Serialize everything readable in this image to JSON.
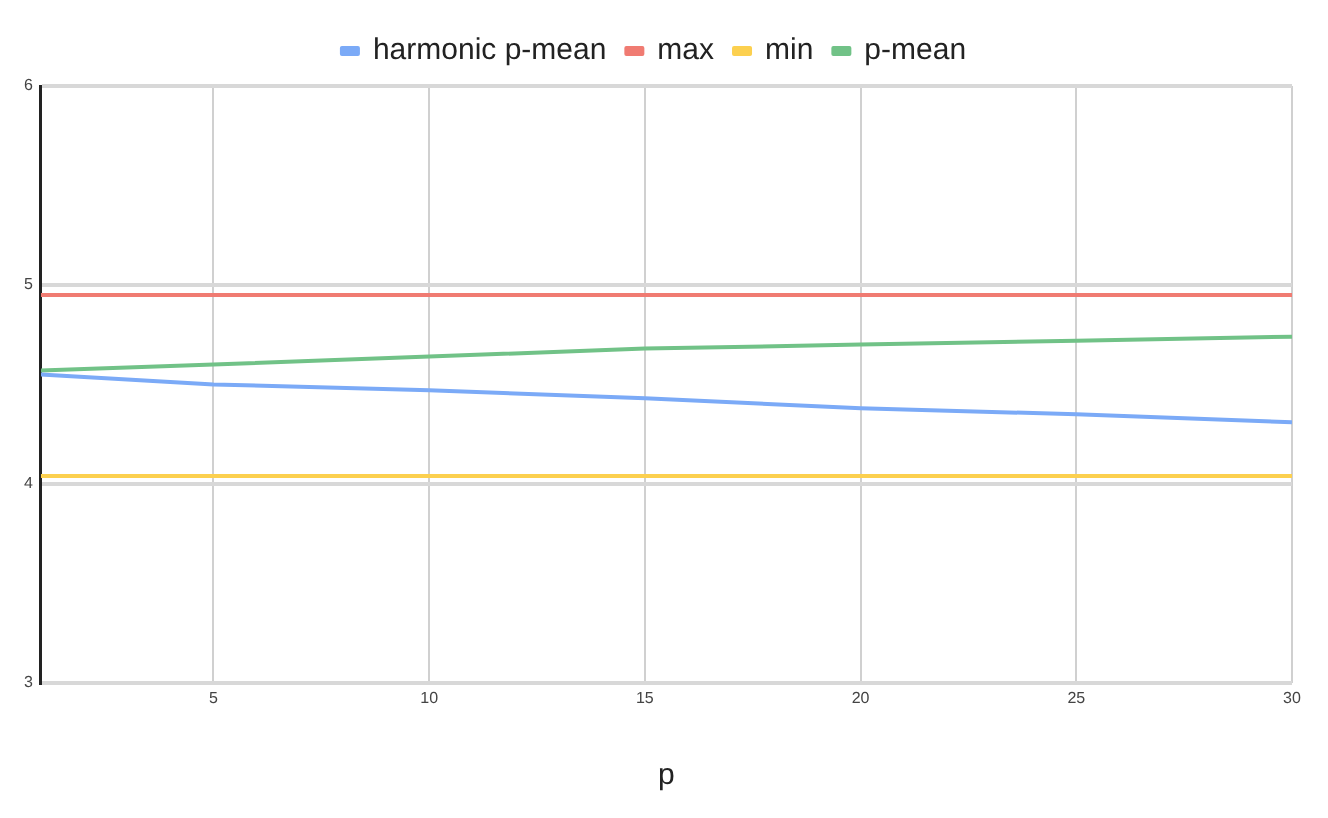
{
  "chart_data": {
    "type": "line",
    "xlabel": "p",
    "x": [
      1,
      5,
      10,
      15,
      20,
      25,
      30
    ],
    "series": [
      {
        "name": "harmonic p-mean",
        "color": "#7baaf7",
        "values": [
          4.55,
          4.5,
          4.47,
          4.43,
          4.38,
          4.35,
          4.31
        ]
      },
      {
        "name": "max",
        "color": "#f07b72",
        "values": [
          4.95,
          4.95,
          4.95,
          4.95,
          4.95,
          4.95,
          4.95
        ]
      },
      {
        "name": "min",
        "color": "#fcd04f",
        "values": [
          4.04,
          4.04,
          4.04,
          4.04,
          4.04,
          4.04,
          4.04
        ]
      },
      {
        "name": "p-mean",
        "color": "#71c287",
        "values": [
          4.57,
          4.6,
          4.64,
          4.68,
          4.7,
          4.72,
          4.74
        ]
      }
    ],
    "xlim": [
      1,
      30
    ],
    "xticks": [
      5,
      10,
      15,
      20,
      25,
      30
    ],
    "ylim": [
      3,
      6
    ],
    "yticks": [
      3,
      4,
      5,
      6
    ],
    "grid": true,
    "legend": "top",
    "marker": "none"
  }
}
